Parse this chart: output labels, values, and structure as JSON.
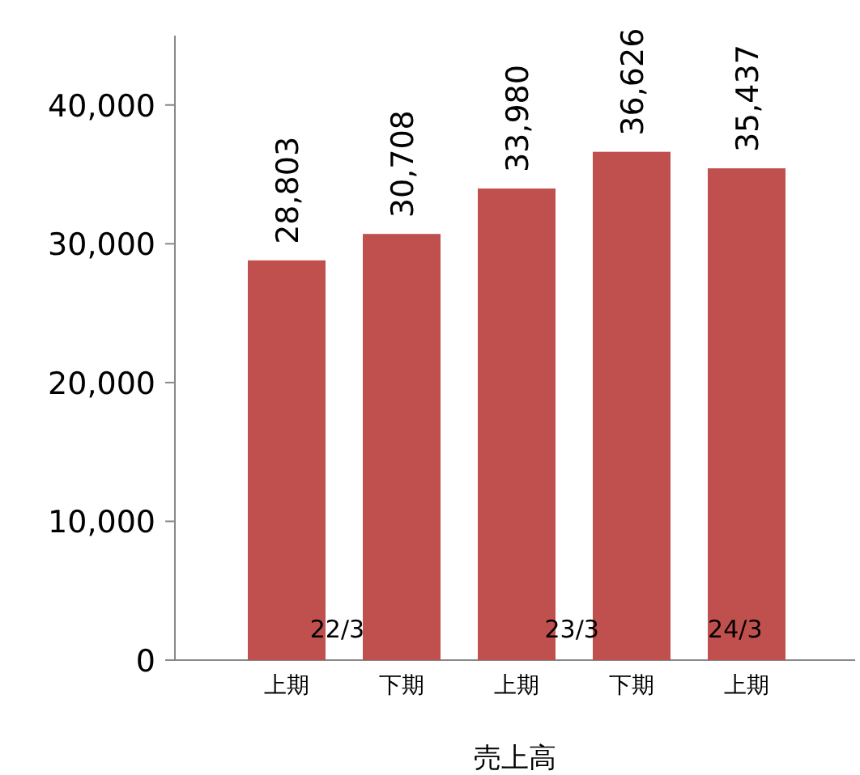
{
  "chart_data": {
    "type": "bar",
    "categories": [
      "上期",
      "下期",
      "上期",
      "下期",
      "上期"
    ],
    "values": [
      28803,
      30708,
      33980,
      36626,
      35437
    ],
    "color": "#c0504d",
    "ylim": [
      0,
      45000
    ],
    "yticks": [
      {
        "value": 0,
        "label": "0"
      },
      {
        "value": 10000,
        "label": "10,000"
      },
      {
        "value": 20000,
        "label": "20,000"
      },
      {
        "value": 30000,
        "label": "30,000"
      },
      {
        "value": 40000,
        "label": "40,000"
      }
    ],
    "value_labels": [
      "28,803",
      "30,708",
      "33,980",
      "36,626",
      "35,437"
    ],
    "xlabel": "売上高",
    "annotations": [
      "22/3",
      "23/3",
      "24/3"
    ]
  }
}
